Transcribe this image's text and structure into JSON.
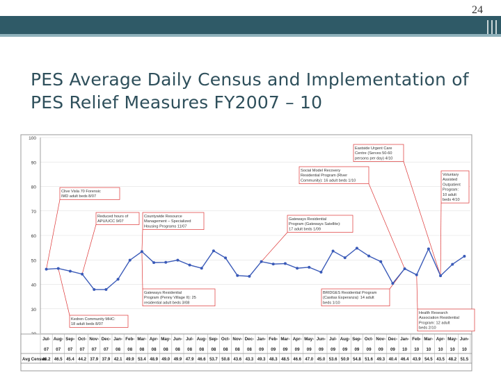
{
  "page_number": "24",
  "title_line1": "PES Average Daily Census and Implementation of",
  "title_line2": "PES Relief Measures FY2007 – 10",
  "colors": {
    "line": "#3a5ab8",
    "annotation": "#dd3333",
    "header": "#2f5a67",
    "title": "#2e4f5b"
  },
  "chart_data": {
    "type": "line",
    "ylim": [
      20,
      100
    ],
    "yticks": [
      20,
      30,
      40,
      50,
      60,
      70,
      80,
      90,
      100
    ],
    "categories": [
      "Jul-07",
      "Aug-07",
      "Sep-07",
      "Oct-07",
      "Nov-07",
      "Dec-07",
      "Jan-08",
      "Feb-08",
      "Mar-08",
      "Apr-08",
      "May-08",
      "Jun-08",
      "Jul-08",
      "Aug-08",
      "Sep-08",
      "Oct-08",
      "Nov-08",
      "Dec-08",
      "Jan-09",
      "Feb-09",
      "Mar-09",
      "Apr-09",
      "May-09",
      "Jun-09",
      "Jul-09",
      "Aug-09",
      "Sep-09",
      "Oct-09",
      "Nov-09",
      "Dec-09",
      "Jan-10",
      "Feb-10",
      "Mar-10",
      "Apr-10",
      "May-10",
      "Jun-10"
    ],
    "x_top": [
      "Jul-",
      "Aug-",
      "Sep-",
      "Oct-",
      "Nov-",
      "Dec-",
      "Jan-",
      "Feb-",
      "Mar-",
      "Apr-",
      "May-",
      "Jun-",
      "Jul-",
      "Aug-",
      "Sep-",
      "Oct-",
      "Nov-",
      "Dec-",
      "Jan-",
      "Feb-",
      "Mar-",
      "Apr-",
      "May-",
      "Jun-",
      "Jul-",
      "Aug-",
      "Sep-",
      "Oct-",
      "Nov-",
      "Dec-",
      "Jan-",
      "Feb-",
      "Mar-",
      "Apr-",
      "May-",
      "Jun-"
    ],
    "x_bottom": [
      "07",
      "07",
      "07",
      "07",
      "07",
      "07",
      "08",
      "08",
      "08",
      "08",
      "08",
      "08",
      "08",
      "08",
      "08",
      "08",
      "08",
      "08",
      "09",
      "09",
      "09",
      "09",
      "09",
      "09",
      "09",
      "09",
      "09",
      "09",
      "09",
      "09",
      "10",
      "10",
      "10",
      "10",
      "10",
      "10"
    ],
    "table_row_label": "Avg Census",
    "values": [
      46.2,
      46.5,
      45.4,
      44.2,
      37.9,
      37.9,
      42.1,
      49.9,
      53.4,
      48.9,
      49.0,
      49.9,
      47.9,
      46.6,
      53.7,
      50.8,
      43.6,
      43.3,
      49.3,
      48.3,
      48.5,
      46.6,
      47.0,
      45.0,
      53.6,
      50.9,
      54.8,
      51.6,
      49.3,
      40.4,
      46.4,
      43.9,
      54.5,
      43.5,
      48.2,
      51.5
    ],
    "annotations": [
      {
        "lines": [
          "Clive Visla 70 Forensic",
          "IMD adult beds 8/07"
        ]
      },
      {
        "lines": [
          "Reduced hours of",
          "APU/UCC 9/07"
        ]
      },
      {
        "lines": [
          "Countywide Resource",
          "Management – Specialized",
          "Housing Programs 11/07"
        ]
      },
      {
        "lines": [
          "Gateways Residential",
          "Program (Penny Village II): 25",
          "residential adult beds 3/08"
        ]
      },
      {
        "lines": [
          "Kedren Community MHC:",
          "18 adult beds 8/07"
        ]
      },
      {
        "lines": [
          "Social Model Recovery",
          "Residential Program (River",
          "Community): 16 adult beds 1/10"
        ]
      },
      {
        "lines": [
          "Gateways Residential",
          "Program (Gateways Satellite):",
          "17 adult beds 1/09"
        ]
      },
      {
        "lines": [
          "Eastside Urgent Care",
          "Centre (Serves 50-60",
          "persons per day) 4/10"
        ]
      },
      {
        "lines": [
          "Voluntary",
          "Assisted",
          "Outpatient",
          "Program:",
          "10 adult",
          "beds 4/10"
        ]
      },
      {
        "lines": [
          "BRIDGES Residential Program",
          "(Casitas Esperanza): 14 adult",
          "beds 1/10"
        ]
      },
      {
        "lines": [
          "Health Research",
          "Association Residential",
          "Program: 12 adult",
          "beds 2/10"
        ]
      }
    ]
  }
}
